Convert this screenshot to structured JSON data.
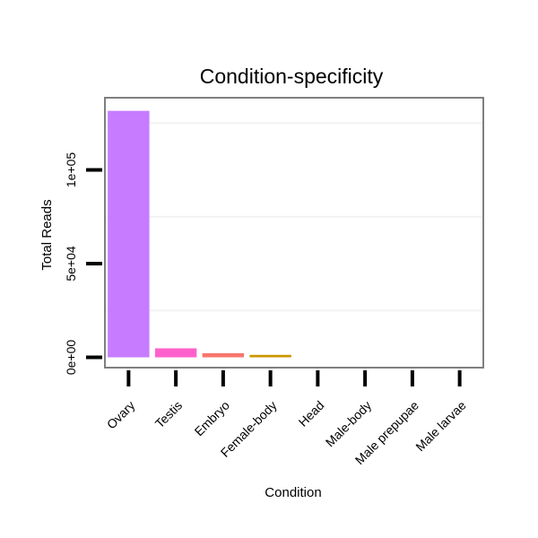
{
  "chart_data": {
    "type": "bar",
    "title": "Condition-specificity",
    "xlabel": "Condition",
    "ylabel": "Total Reads",
    "categories": [
      "Ovary",
      "Testis",
      "Embryo",
      "Female-body",
      "Head",
      "Male-body",
      "Male prepupae",
      "Male larvae"
    ],
    "values": [
      131500,
      4800,
      2200,
      1300,
      0,
      0,
      0,
      0
    ],
    "colors": [
      "#c77cff",
      "#ff61cc",
      "#f8766d",
      "#cd9600",
      "#7cae00",
      "#00be67",
      "#00bfc4",
      "#00a9ff"
    ],
    "ylim": [
      -5500,
      138500
    ],
    "yticks": [
      0,
      50000,
      100000
    ],
    "ytick_labels": [
      "0e+00",
      "5e+04",
      "1e+05"
    ],
    "grid": true,
    "legend": "none"
  }
}
